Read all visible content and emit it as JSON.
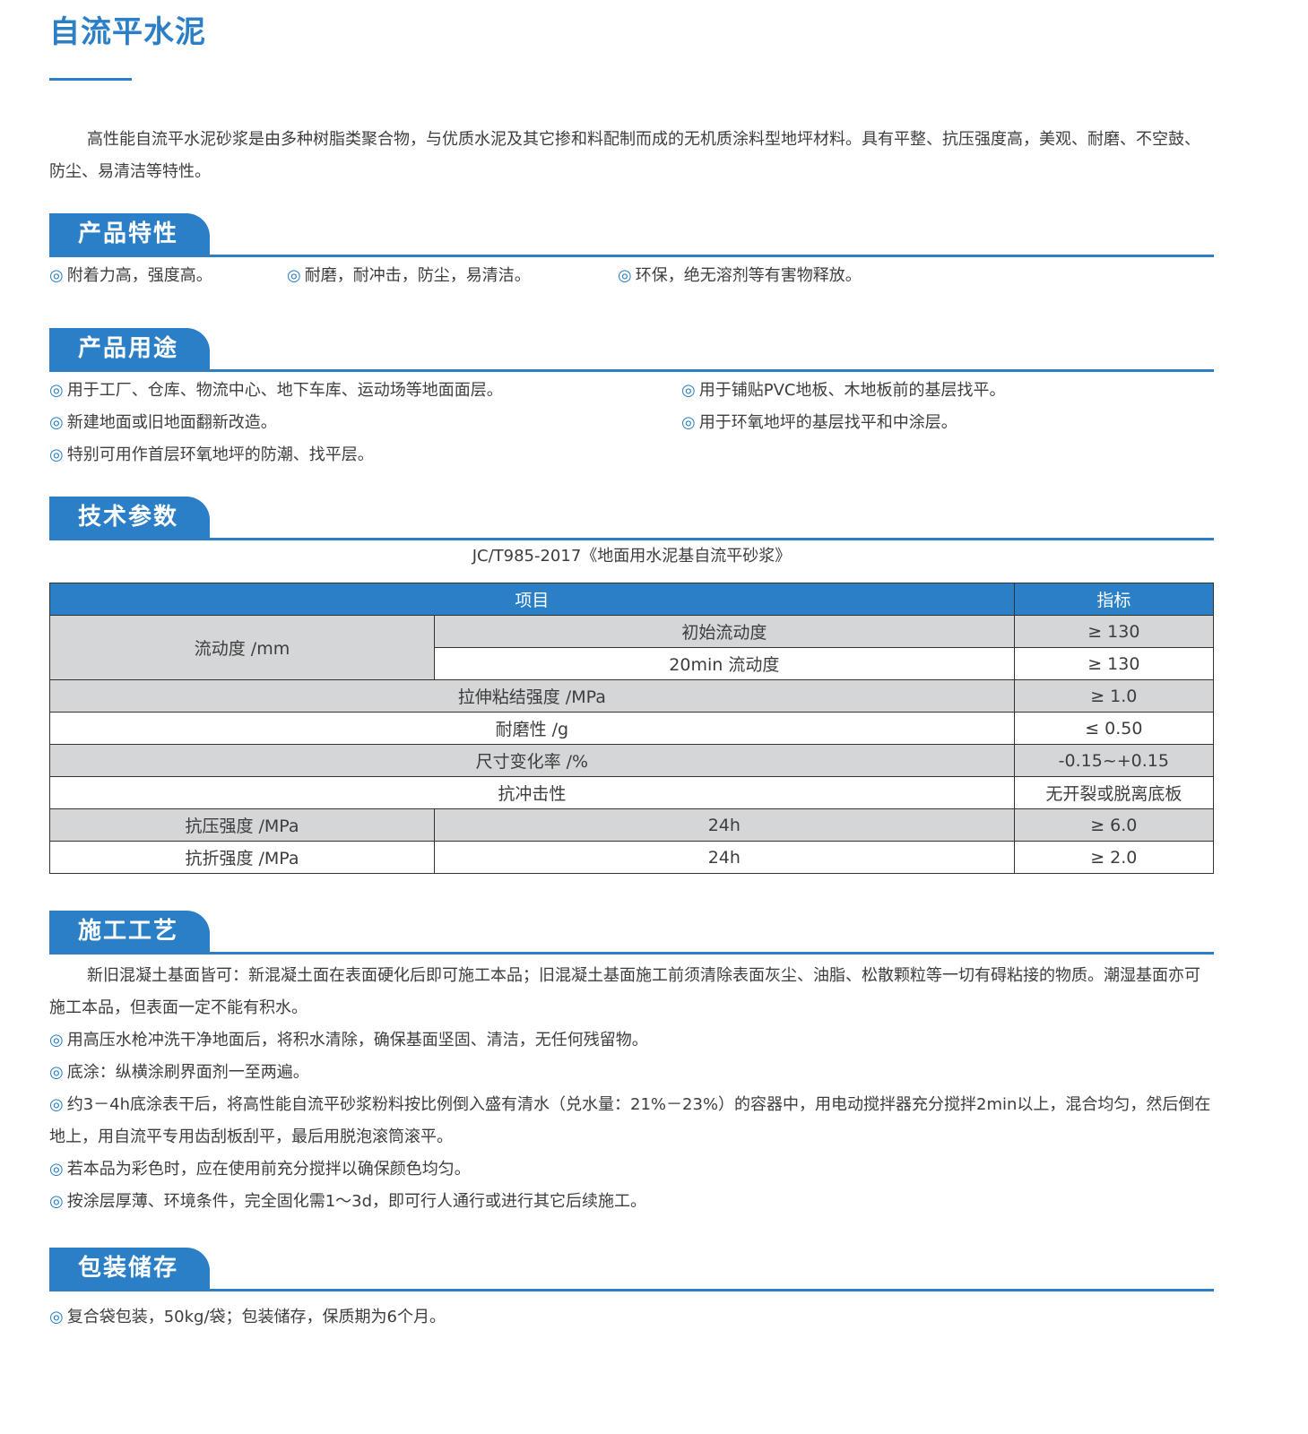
{
  "title": "自流平水泥",
  "intro": "高性能自流平水泥砂浆是由多种树脂类聚合物，与优质水泥及其它掺和料配制而成的无机质涂料型地坪材料。具有平整、抗压强度高，美观、耐磨、不空鼓、防尘、易清洁等特性。",
  "sections": {
    "features": {
      "title": "产品特性",
      "items": [
        "附着力高，强度高。",
        "耐磨，耐冲击，防尘，易清洁。",
        "环保，绝无溶剂等有害物释放。"
      ]
    },
    "uses": {
      "title": "产品用途",
      "items": [
        "用于工厂、仓库、物流中心、地下车库、运动场等地面面层。",
        "用于铺贴PVC地板、木地板前的基层找平。",
        "新建地面或旧地面翻新改造。",
        "用于环氧地坪的基层找平和中涂层。",
        "特别可用作首层环氧地坪的防潮、找平层。"
      ]
    },
    "tech": {
      "title": "技术参数",
      "caption": "JC/T985-2017《地面用水泥基自流平砂浆》",
      "table": {
        "headers": [
          "项目",
          "指标"
        ],
        "rows": [
          [
            "流动度 /mm",
            "初始流动度",
            "≥ 130"
          ],
          [
            "",
            "20min 流动度",
            "≥ 130"
          ],
          [
            "拉伸粘结强度 /MPa",
            "",
            "≥ 1.0"
          ],
          [
            "耐磨性 /g",
            "",
            "≤ 0.50"
          ],
          [
            "尺寸变化率 /%",
            "",
            "-0.15~+0.15"
          ],
          [
            "抗冲击性",
            "",
            "无开裂或脱离底板"
          ],
          [
            "抗压强度 /MPa",
            "24h",
            "≥ 6.0"
          ],
          [
            "抗折强度 /MPa",
            "24h",
            "≥ 2.0"
          ]
        ]
      }
    },
    "process": {
      "title": "施工工艺",
      "intro": "新旧混凝土基面皆可：新混凝土面在表面硬化后即可施工本品；旧混凝土基面施工前须清除表面灰尘、油脂、松散颗粒等一切有碍粘接的物质。潮湿基面亦可施工本品，但表面一定不能有积水。",
      "items": [
        "用高压水枪冲洗干净地面后，将积水清除，确保基面坚固、清洁，无任何残留物。",
        "底涂：纵横涂刷界面剂一至两遍。",
        "约3－4h底涂表干后，将高性能自流平砂浆粉料按比例倒入盛有清水（兑水量：21%－23%）的容器中，用电动搅拌器充分搅拌2min以上，混合均匀，然后倒在地上，用自流平专用齿刮板刮平，最后用脱泡滚筒滚平。",
        "若本品为彩色时，应在使用前充分搅拌以确保颜色均匀。",
        "按涂层厚薄、环境条件，完全固化需1～3d，即可行人通行或进行其它后续施工。"
      ]
    },
    "storage": {
      "title": "包装储存",
      "items": [
        "复合袋包装，50kg/袋；包装储存，保质期为6个月。"
      ]
    }
  },
  "colors": {
    "accent": "#2a7fc6",
    "row_gray": "#d5d6d8"
  }
}
